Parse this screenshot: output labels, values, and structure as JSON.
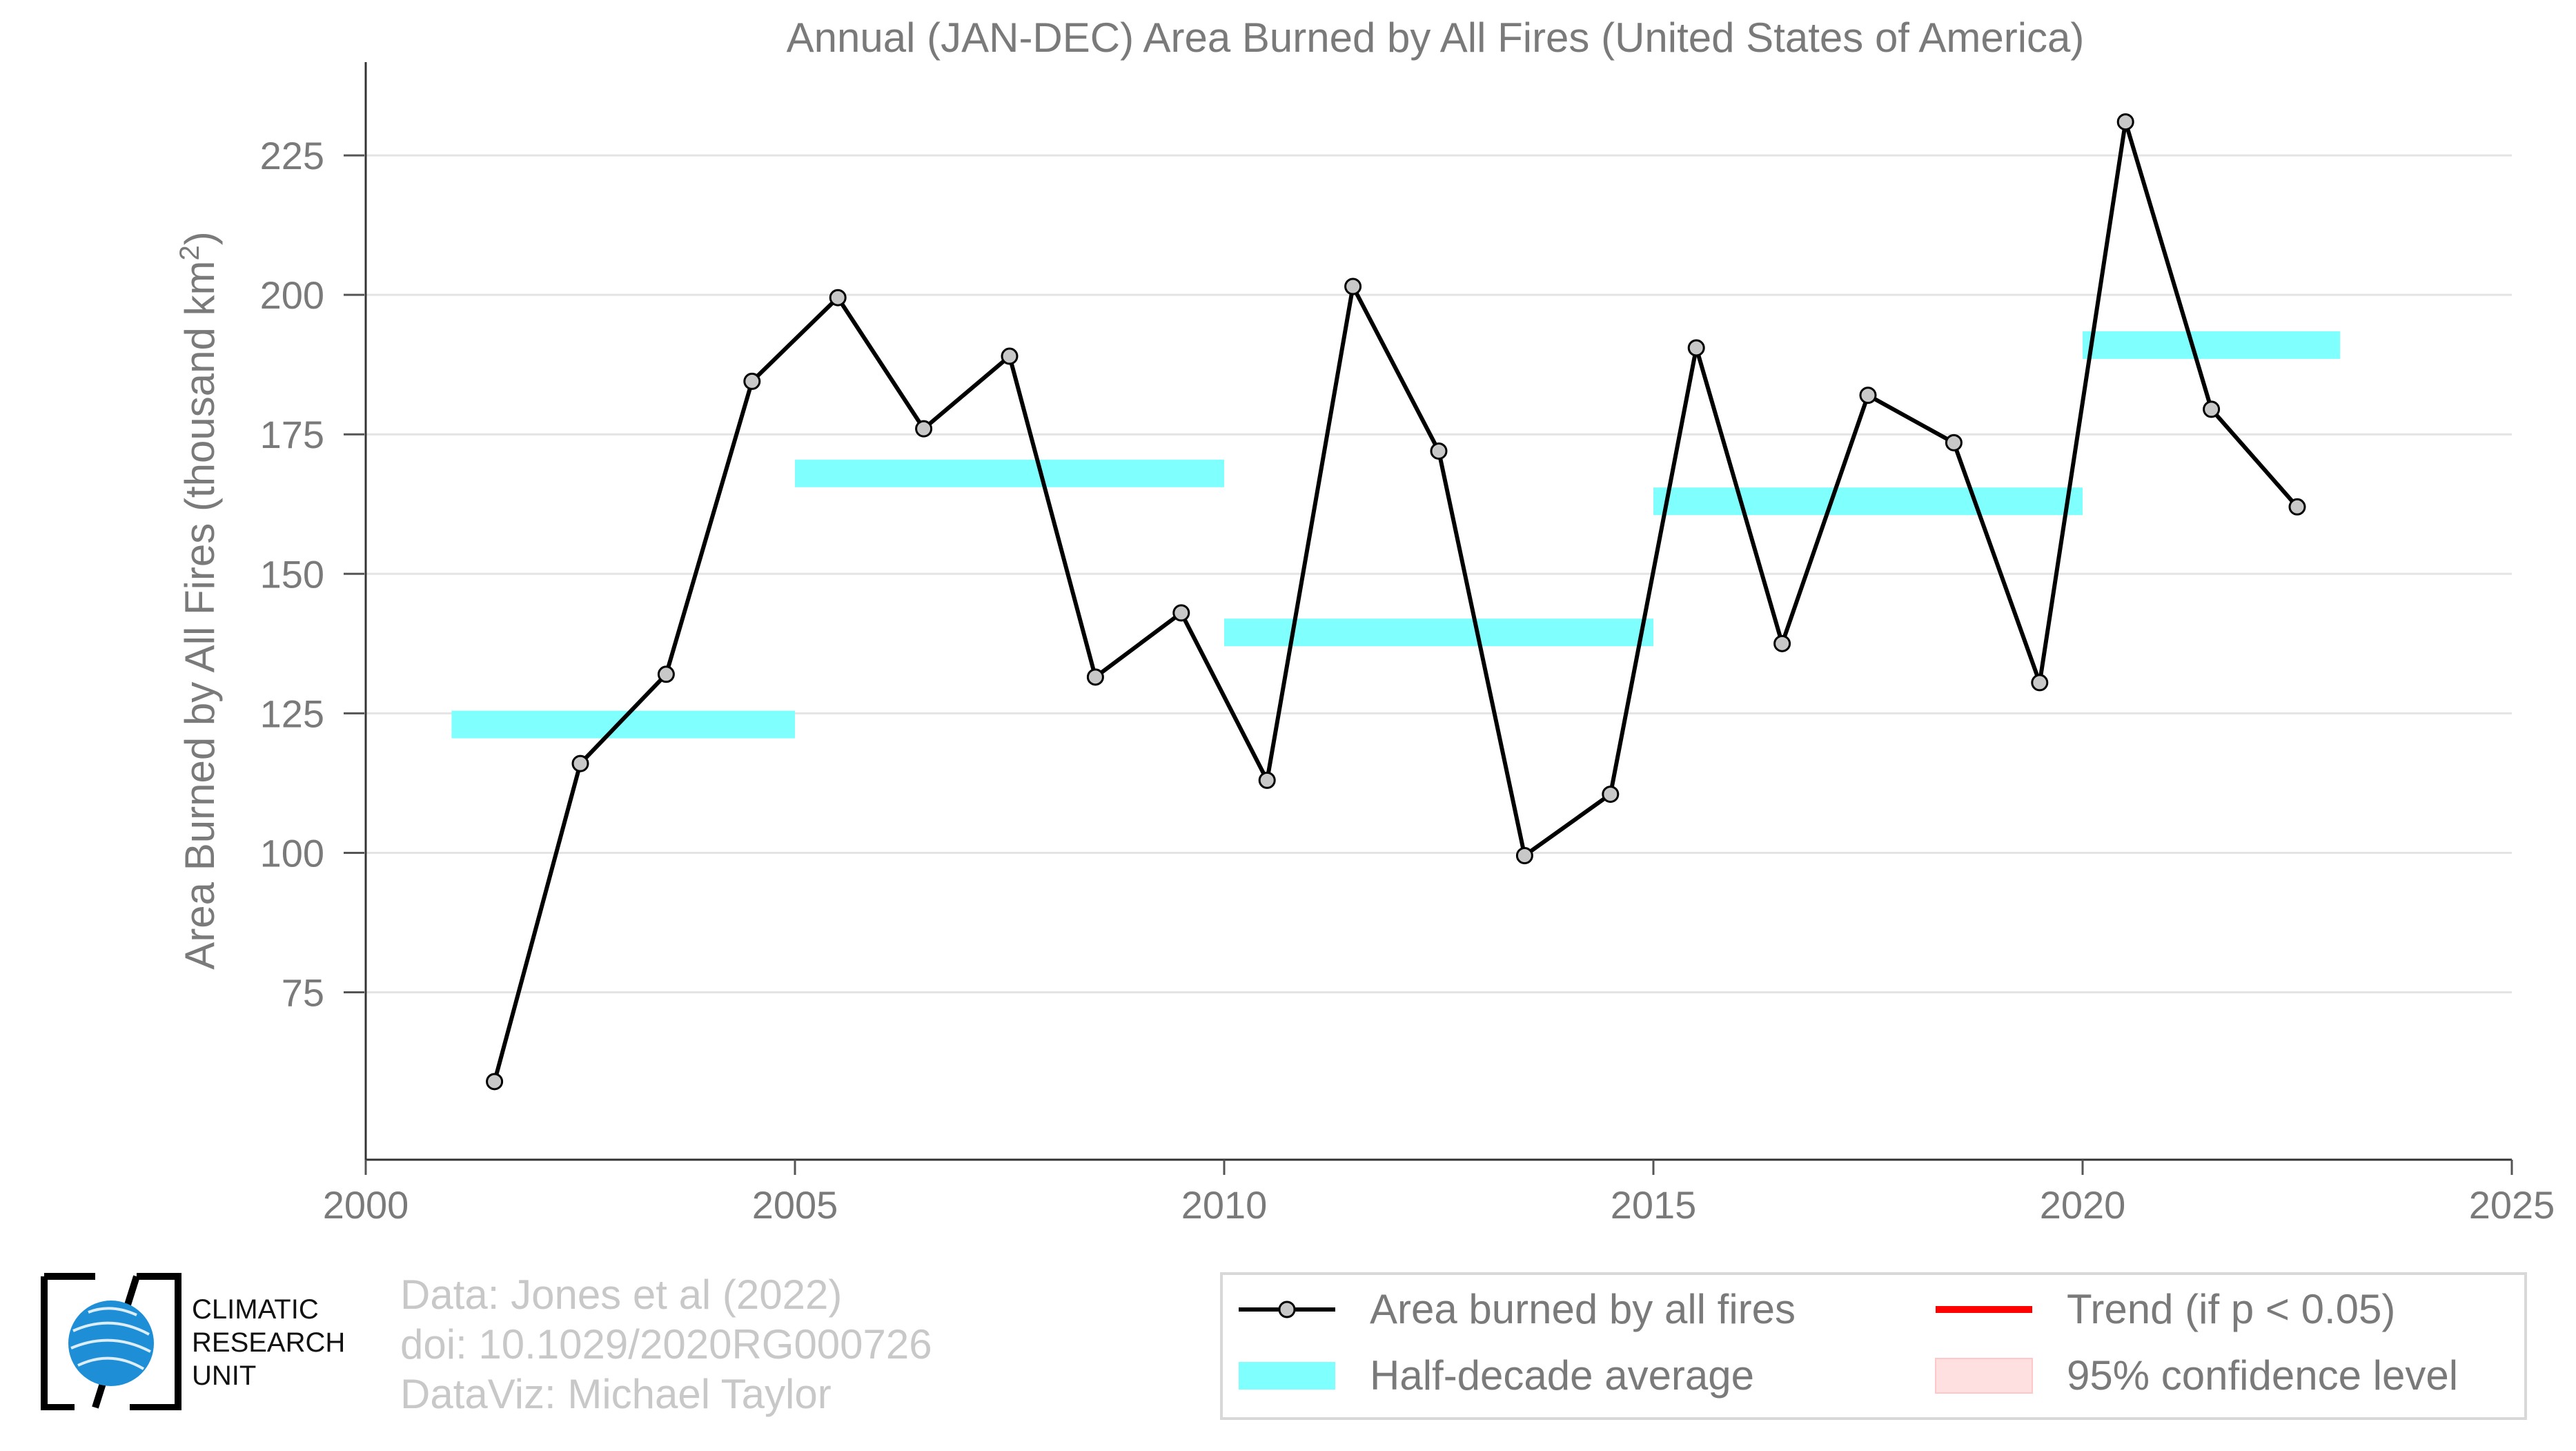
{
  "chart_data": {
    "type": "line",
    "title": "Annual (JAN-DEC) Area Burned by All Fires (United States of America)",
    "ylabel": "Area Burned by All Fires (thousand km²)",
    "xlabel": "",
    "xlim": [
      2000,
      2025
    ],
    "ylim": [
      45,
      238
    ],
    "x_ticks": [
      2000,
      2005,
      2010,
      2015,
      2020,
      2025
    ],
    "y_ticks": [
      75,
      100,
      125,
      150,
      175,
      200,
      225
    ],
    "grid": "horizontal",
    "series": [
      {
        "name": "Area burned by all fires",
        "color": "#000000",
        "marker_fill": "#c8c8c8",
        "x": [
          2001.5,
          2002.5,
          2003.5,
          2004.5,
          2005.5,
          2006.5,
          2007.5,
          2008.5,
          2009.5,
          2010.5,
          2011.5,
          2012.5,
          2013.5,
          2014.5,
          2015.5,
          2016.5,
          2017.5,
          2018.5,
          2019.5,
          2020.5,
          2021.5,
          2022.5
        ],
        "y": [
          59,
          116,
          132,
          184.5,
          199.5,
          176,
          189,
          131.5,
          143,
          113,
          201.5,
          172,
          99.5,
          110.5,
          190.5,
          137.5,
          182,
          173.5,
          130.5,
          231,
          179.5,
          162
        ]
      }
    ],
    "half_decade_averages": {
      "name": "Half-decade average",
      "color": "#80ffff",
      "segments": [
        {
          "x0": 2001,
          "x1": 2005,
          "y": 123
        },
        {
          "x0": 2005,
          "x1": 2010,
          "y": 168
        },
        {
          "x0": 2010,
          "x1": 2015,
          "y": 139.5
        },
        {
          "x0": 2015,
          "x1": 2020,
          "y": 163
        },
        {
          "x0": 2020,
          "x1": 2023,
          "y": 191
        }
      ]
    },
    "legend": {
      "placement": "bottom-right",
      "entries": [
        {
          "label": "Area burned by all fires",
          "kind": "line-marker",
          "color": "#000000"
        },
        {
          "label": "Trend (if p < 0.05)",
          "kind": "line",
          "color": "#ff0000"
        },
        {
          "label": "Half-decade average",
          "kind": "band",
          "color": "#80ffff"
        },
        {
          "label": "95% confidence level",
          "kind": "patch",
          "color": "#ffe0e0"
        }
      ]
    }
  },
  "credits": {
    "line1": "Data: Jones et al (2022)",
    "line2": "doi: 10.1029/2020RG000726",
    "line3": "DataViz: Michael Taylor"
  },
  "logo": {
    "line1": "CLIMATIC",
    "line2": "RESEARCH",
    "line3": "UNIT",
    "globe_color": "#1e8fd6"
  }
}
